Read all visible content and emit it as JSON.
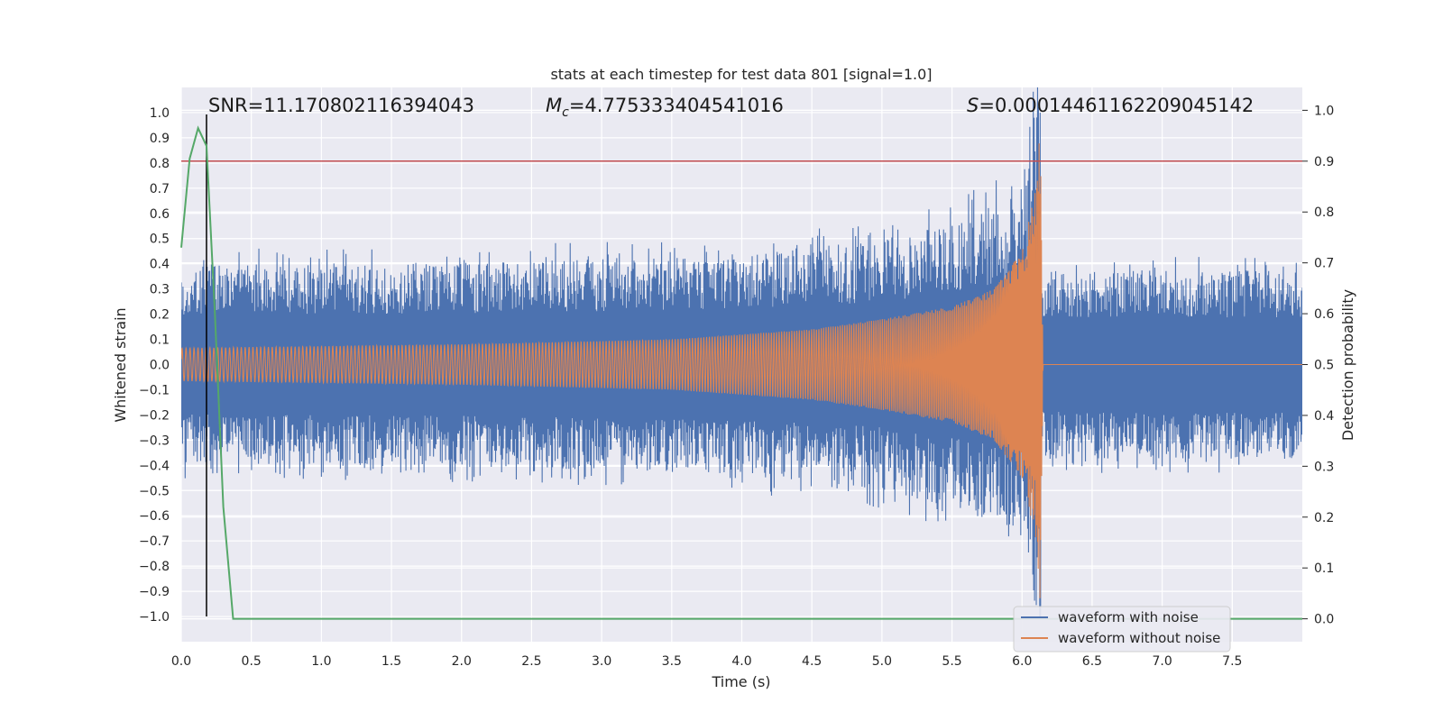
{
  "chart_data": {
    "type": "line",
    "title": "stats at each timestep for test data 801 [signal=1.0]",
    "xlabel": "Time (s)",
    "ylabel": "Whitened strain",
    "y2label": "Detection probability",
    "xlim": [
      0.0,
      8.0
    ],
    "ylim": [
      -1.1,
      1.1
    ],
    "y2lim": [
      -0.045,
      1.045
    ],
    "x_ticks": [
      "0.0",
      "0.5",
      "1.0",
      "1.5",
      "2.0",
      "2.5",
      "3.0",
      "3.5",
      "4.0",
      "4.5",
      "5.0",
      "5.5",
      "6.0",
      "6.5",
      "7.0",
      "7.5"
    ],
    "y_ticks": [
      "1.0",
      "0.9",
      "0.8",
      "0.7",
      "0.6",
      "0.5",
      "0.4",
      "0.3",
      "0.2",
      "0.1",
      "0.0",
      "−0.1",
      "−0.2",
      "−0.3",
      "−0.4",
      "−0.5",
      "−0.6",
      "−0.7",
      "−0.8",
      "−0.9",
      "−1.0"
    ],
    "y2_ticks": [
      "1.0",
      "0.9",
      "0.8",
      "0.7",
      "0.6",
      "0.5",
      "0.4",
      "0.3",
      "0.2",
      "0.1",
      "0.0"
    ],
    "grid": true,
    "legend_position": "lower-right",
    "annotations": {
      "snr": "SNR=11.170802116394043",
      "mc_symbol": "M",
      "mc_sub": "c",
      "mc_value": "=4.775333404541016",
      "s_symbol": "S",
      "s_value": "=0.00014461162209045142"
    },
    "threshold": {
      "value": 0.9,
      "axis": "y2",
      "color": "#c44e52"
    },
    "marker": {
      "x": 0.18,
      "color": "#000000"
    },
    "merger_time": 6.13,
    "series": [
      {
        "name": "waveform with noise",
        "color": "#4c72b0",
        "axis": "y",
        "envelope": [
          {
            "t": 0.0,
            "amp": 0.36
          },
          {
            "t": 2.0,
            "amp": 0.37
          },
          {
            "t": 4.0,
            "amp": 0.4
          },
          {
            "t": 5.0,
            "amp": 0.45
          },
          {
            "t": 5.5,
            "amp": 0.52
          },
          {
            "t": 6.0,
            "amp": 0.62
          },
          {
            "t": 6.13,
            "amp": 1.0
          },
          {
            "t": 6.14,
            "amp": 0.34
          },
          {
            "t": 8.0,
            "amp": 0.34
          }
        ]
      },
      {
        "name": "waveform without noise",
        "color": "#dd8452",
        "axis": "y",
        "envelope": [
          {
            "t": 0.0,
            "amp": 0.065
          },
          {
            "t": 2.0,
            "amp": 0.08
          },
          {
            "t": 3.5,
            "amp": 0.1
          },
          {
            "t": 4.5,
            "amp": 0.14
          },
          {
            "t": 5.0,
            "amp": 0.18
          },
          {
            "t": 5.5,
            "amp": 0.23
          },
          {
            "t": 5.8,
            "amp": 0.3
          },
          {
            "t": 6.0,
            "amp": 0.45
          },
          {
            "t": 6.1,
            "amp": 0.7
          },
          {
            "t": 6.13,
            "amp": 0.95
          },
          {
            "t": 6.15,
            "amp": 0.0
          },
          {
            "t": 8.0,
            "amp": 0.0
          }
        ]
      },
      {
        "name": "detection probability",
        "color": "#55a868",
        "axis": "y2",
        "points": [
          [
            0.0,
            0.73
          ],
          [
            0.06,
            0.905
          ],
          [
            0.12,
            0.965
          ],
          [
            0.18,
            0.93
          ],
          [
            0.24,
            0.6
          ],
          [
            0.3,
            0.22
          ],
          [
            0.37,
            0.0
          ],
          [
            8.0,
            0.0
          ]
        ]
      }
    ]
  }
}
